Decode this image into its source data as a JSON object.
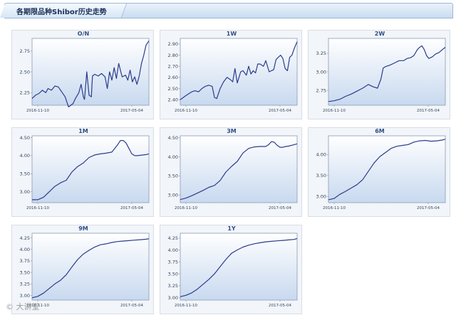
{
  "header": {
    "title": "各期限品种Shibor历史走势"
  },
  "watermark": "© 大讲堂",
  "colors": {
    "line": "#2b3c8c",
    "plot_top": "#ffffff",
    "plot_bottom": "#c8d9ef",
    "axis": "#8a9bb5"
  },
  "chart_data": [
    {
      "type": "line",
      "title": "O/N",
      "ylim": [
        2.1,
        2.9
      ],
      "yticks": [
        2.25,
        2.5,
        2.75
      ],
      "ytick_labels": [
        "2.25",
        "2.50",
        "2.75"
      ],
      "xticks": [
        10,
        175
      ],
      "xtick_labels": [
        "2016-11-10",
        "2017-05-04"
      ],
      "grid": false,
      "x_domain": [
        0,
        205
      ],
      "series": [
        {
          "x": [
            0,
            6,
            12,
            18,
            24,
            28,
            34,
            40,
            46,
            52,
            58,
            64,
            68,
            72,
            76,
            82,
            86,
            90,
            92,
            96,
            100,
            104,
            106,
            110,
            116,
            122,
            128,
            132,
            136,
            140,
            144,
            148,
            152,
            158,
            164,
            168,
            172,
            176,
            180,
            184,
            188,
            192,
            196,
            200,
            205
          ],
          "y": [
            2.18,
            2.22,
            2.24,
            2.28,
            2.25,
            2.3,
            2.28,
            2.33,
            2.32,
            2.26,
            2.2,
            2.08,
            2.1,
            2.12,
            2.18,
            2.25,
            2.35,
            2.2,
            2.17,
            2.5,
            2.22,
            2.2,
            2.45,
            2.47,
            2.45,
            2.48,
            2.44,
            2.3,
            2.5,
            2.4,
            2.55,
            2.42,
            2.6,
            2.44,
            2.46,
            2.4,
            2.52,
            2.38,
            2.44,
            2.35,
            2.45,
            2.6,
            2.7,
            2.82,
            2.87
          ]
        }
      ]
    },
    {
      "type": "line",
      "title": "1W",
      "ylim": [
        2.35,
        2.95
      ],
      "yticks": [
        2.4,
        2.5,
        2.6,
        2.7,
        2.8,
        2.9
      ],
      "ytick_labels": [
        "2.40",
        "2.50",
        "2.60",
        "2.70",
        "2.80",
        "2.90"
      ],
      "xticks": [
        10,
        175
      ],
      "xtick_labels": [
        "2016-11-10",
        "2017-05-04"
      ],
      "grid": false,
      "x_domain": [
        0,
        205
      ],
      "series": [
        {
          "x": [
            0,
            8,
            14,
            20,
            26,
            32,
            38,
            44,
            50,
            56,
            60,
            64,
            70,
            76,
            82,
            88,
            92,
            96,
            100,
            106,
            110,
            116,
            120,
            124,
            128,
            132,
            136,
            140,
            146,
            150,
            156,
            160,
            164,
            168,
            172,
            176,
            180,
            184,
            188,
            192,
            196,
            200,
            205
          ],
          "y": [
            2.4,
            2.43,
            2.45,
            2.47,
            2.48,
            2.47,
            2.5,
            2.52,
            2.53,
            2.52,
            2.42,
            2.41,
            2.5,
            2.56,
            2.6,
            2.58,
            2.56,
            2.68,
            2.55,
            2.65,
            2.66,
            2.62,
            2.7,
            2.63,
            2.66,
            2.64,
            2.72,
            2.72,
            2.7,
            2.75,
            2.65,
            2.66,
            2.67,
            2.76,
            2.78,
            2.8,
            2.77,
            2.68,
            2.66,
            2.78,
            2.8,
            2.86,
            2.92
          ]
        }
      ]
    },
    {
      "type": "line",
      "title": "2W",
      "ylim": [
        2.55,
        3.45
      ],
      "yticks": [
        2.75,
        3.0,
        3.25
      ],
      "ytick_labels": [
        "2.75",
        "3.00",
        "3.25"
      ],
      "xticks": [
        10,
        175
      ],
      "xtick_labels": [
        "2016-11-10",
        "2017-05-04"
      ],
      "grid": false,
      "x_domain": [
        0,
        205
      ],
      "series": [
        {
          "x": [
            0,
            10,
            20,
            30,
            40,
            50,
            60,
            70,
            78,
            86,
            92,
            96,
            100,
            108,
            116,
            124,
            132,
            138,
            144,
            150,
            156,
            160,
            164,
            168,
            172,
            176,
            182,
            188,
            194,
            200,
            205
          ],
          "y": [
            2.6,
            2.61,
            2.63,
            2.67,
            2.7,
            2.74,
            2.78,
            2.83,
            2.8,
            2.78,
            2.9,
            3.05,
            3.07,
            3.09,
            3.12,
            3.15,
            3.15,
            3.18,
            3.19,
            3.22,
            3.3,
            3.33,
            3.35,
            3.3,
            3.22,
            3.18,
            3.2,
            3.24,
            3.26,
            3.3,
            3.33
          ]
        }
      ]
    },
    {
      "type": "line",
      "title": "1M",
      "ylim": [
        2.7,
        4.55
      ],
      "yticks": [
        3.0,
        3.5,
        4.0,
        4.5
      ],
      "ytick_labels": [
        "3.00",
        "3.50",
        "4.00",
        "4.50"
      ],
      "xticks": [
        10,
        175
      ],
      "xtick_labels": [
        "2016-11-10",
        "2017-05-04"
      ],
      "grid": false,
      "x_domain": [
        0,
        205
      ],
      "series": [
        {
          "x": [
            0,
            10,
            20,
            30,
            40,
            50,
            60,
            70,
            80,
            90,
            100,
            110,
            120,
            130,
            140,
            150,
            155,
            160,
            165,
            170,
            175,
            180,
            185,
            190,
            195,
            200,
            205
          ],
          "y": [
            2.78,
            2.78,
            2.85,
            3.0,
            3.15,
            3.25,
            3.32,
            3.55,
            3.7,
            3.8,
            3.95,
            4.02,
            4.05,
            4.07,
            4.1,
            4.3,
            4.42,
            4.42,
            4.35,
            4.2,
            4.05,
            4.0,
            4.0,
            4.01,
            4.02,
            4.03,
            4.05
          ]
        }
      ]
    },
    {
      "type": "line",
      "title": "3M",
      "ylim": [
        2.8,
        4.55
      ],
      "yticks": [
        3.0,
        3.5,
        4.0,
        4.5
      ],
      "ytick_labels": [
        "3.00",
        "3.50",
        "4.00",
        "4.50"
      ],
      "xticks": [
        10,
        175
      ],
      "xtick_labels": [
        "2016-11-10",
        "2017-05-04"
      ],
      "grid": false,
      "x_domain": [
        0,
        205
      ],
      "series": [
        {
          "x": [
            0,
            10,
            20,
            30,
            40,
            50,
            60,
            70,
            80,
            90,
            100,
            110,
            120,
            130,
            140,
            150,
            155,
            160,
            165,
            170,
            175,
            180,
            185,
            190,
            195,
            200,
            205
          ],
          "y": [
            2.88,
            2.92,
            2.98,
            3.05,
            3.12,
            3.2,
            3.25,
            3.38,
            3.6,
            3.75,
            3.88,
            4.1,
            4.22,
            4.26,
            4.27,
            4.27,
            4.32,
            4.4,
            4.38,
            4.3,
            4.25,
            4.25,
            4.27,
            4.28,
            4.3,
            4.32,
            4.34
          ]
        }
      ]
    },
    {
      "type": "line",
      "title": "6M",
      "ylim": [
        2.85,
        4.45
      ],
      "yticks": [
        3.0,
        3.5,
        4.0
      ],
      "ytick_labels": [
        "3.00",
        "3.50",
        "4.00"
      ],
      "xticks": [
        10,
        175
      ],
      "xtick_labels": [
        "2016-11-10",
        "2017-05-04"
      ],
      "grid": false,
      "x_domain": [
        0,
        205
      ],
      "series": [
        {
          "x": [
            0,
            10,
            20,
            30,
            40,
            50,
            60,
            70,
            80,
            90,
            100,
            110,
            120,
            130,
            140,
            150,
            160,
            170,
            180,
            190,
            200,
            205
          ],
          "y": [
            2.92,
            2.95,
            3.05,
            3.12,
            3.2,
            3.28,
            3.4,
            3.6,
            3.8,
            3.95,
            4.05,
            4.15,
            4.2,
            4.22,
            4.24,
            4.3,
            4.33,
            4.34,
            4.32,
            4.33,
            4.35,
            4.37
          ]
        }
      ]
    },
    {
      "type": "line",
      "title": "9M",
      "ylim": [
        2.9,
        4.35
      ],
      "yticks": [
        3.0,
        3.25,
        3.5,
        3.75,
        4.0,
        4.25
      ],
      "ytick_labels": [
        "3.00",
        "3.25",
        "3.50",
        "3.75",
        "4.00",
        "4.25"
      ],
      "xticks": [
        10,
        175
      ],
      "xtick_labels": [
        "2016-11-10",
        "2017-05-04"
      ],
      "grid": false,
      "x_domain": [
        0,
        205
      ],
      "series": [
        {
          "x": [
            0,
            10,
            20,
            30,
            40,
            50,
            60,
            70,
            80,
            90,
            100,
            110,
            120,
            130,
            140,
            150,
            160,
            170,
            180,
            190,
            200,
            205
          ],
          "y": [
            2.95,
            2.98,
            3.05,
            3.15,
            3.25,
            3.33,
            3.45,
            3.62,
            3.78,
            3.9,
            3.98,
            4.05,
            4.1,
            4.12,
            4.15,
            4.17,
            4.18,
            4.19,
            4.2,
            4.21,
            4.22,
            4.23
          ]
        }
      ]
    },
    {
      "type": "line",
      "title": "1Y",
      "ylim": [
        2.95,
        4.35
      ],
      "yticks": [
        3.0,
        3.25,
        3.5,
        3.75,
        4.0,
        4.25
      ],
      "ytick_labels": [
        "3.00",
        "3.25",
        "3.50",
        "3.75",
        "4.00",
        "4.25"
      ],
      "xticks": [
        10,
        175
      ],
      "xtick_labels": [
        "2016-11-10",
        "2017-05-04"
      ],
      "grid": false,
      "x_domain": [
        0,
        205
      ],
      "series": [
        {
          "x": [
            0,
            10,
            20,
            30,
            40,
            50,
            60,
            70,
            80,
            90,
            100,
            110,
            120,
            130,
            140,
            150,
            160,
            170,
            180,
            190,
            200,
            205
          ],
          "y": [
            3.02,
            3.05,
            3.1,
            3.18,
            3.28,
            3.38,
            3.5,
            3.65,
            3.8,
            3.93,
            4.0,
            4.06,
            4.1,
            4.13,
            4.15,
            4.17,
            4.18,
            4.19,
            4.2,
            4.21,
            4.22,
            4.24
          ]
        }
      ]
    }
  ]
}
